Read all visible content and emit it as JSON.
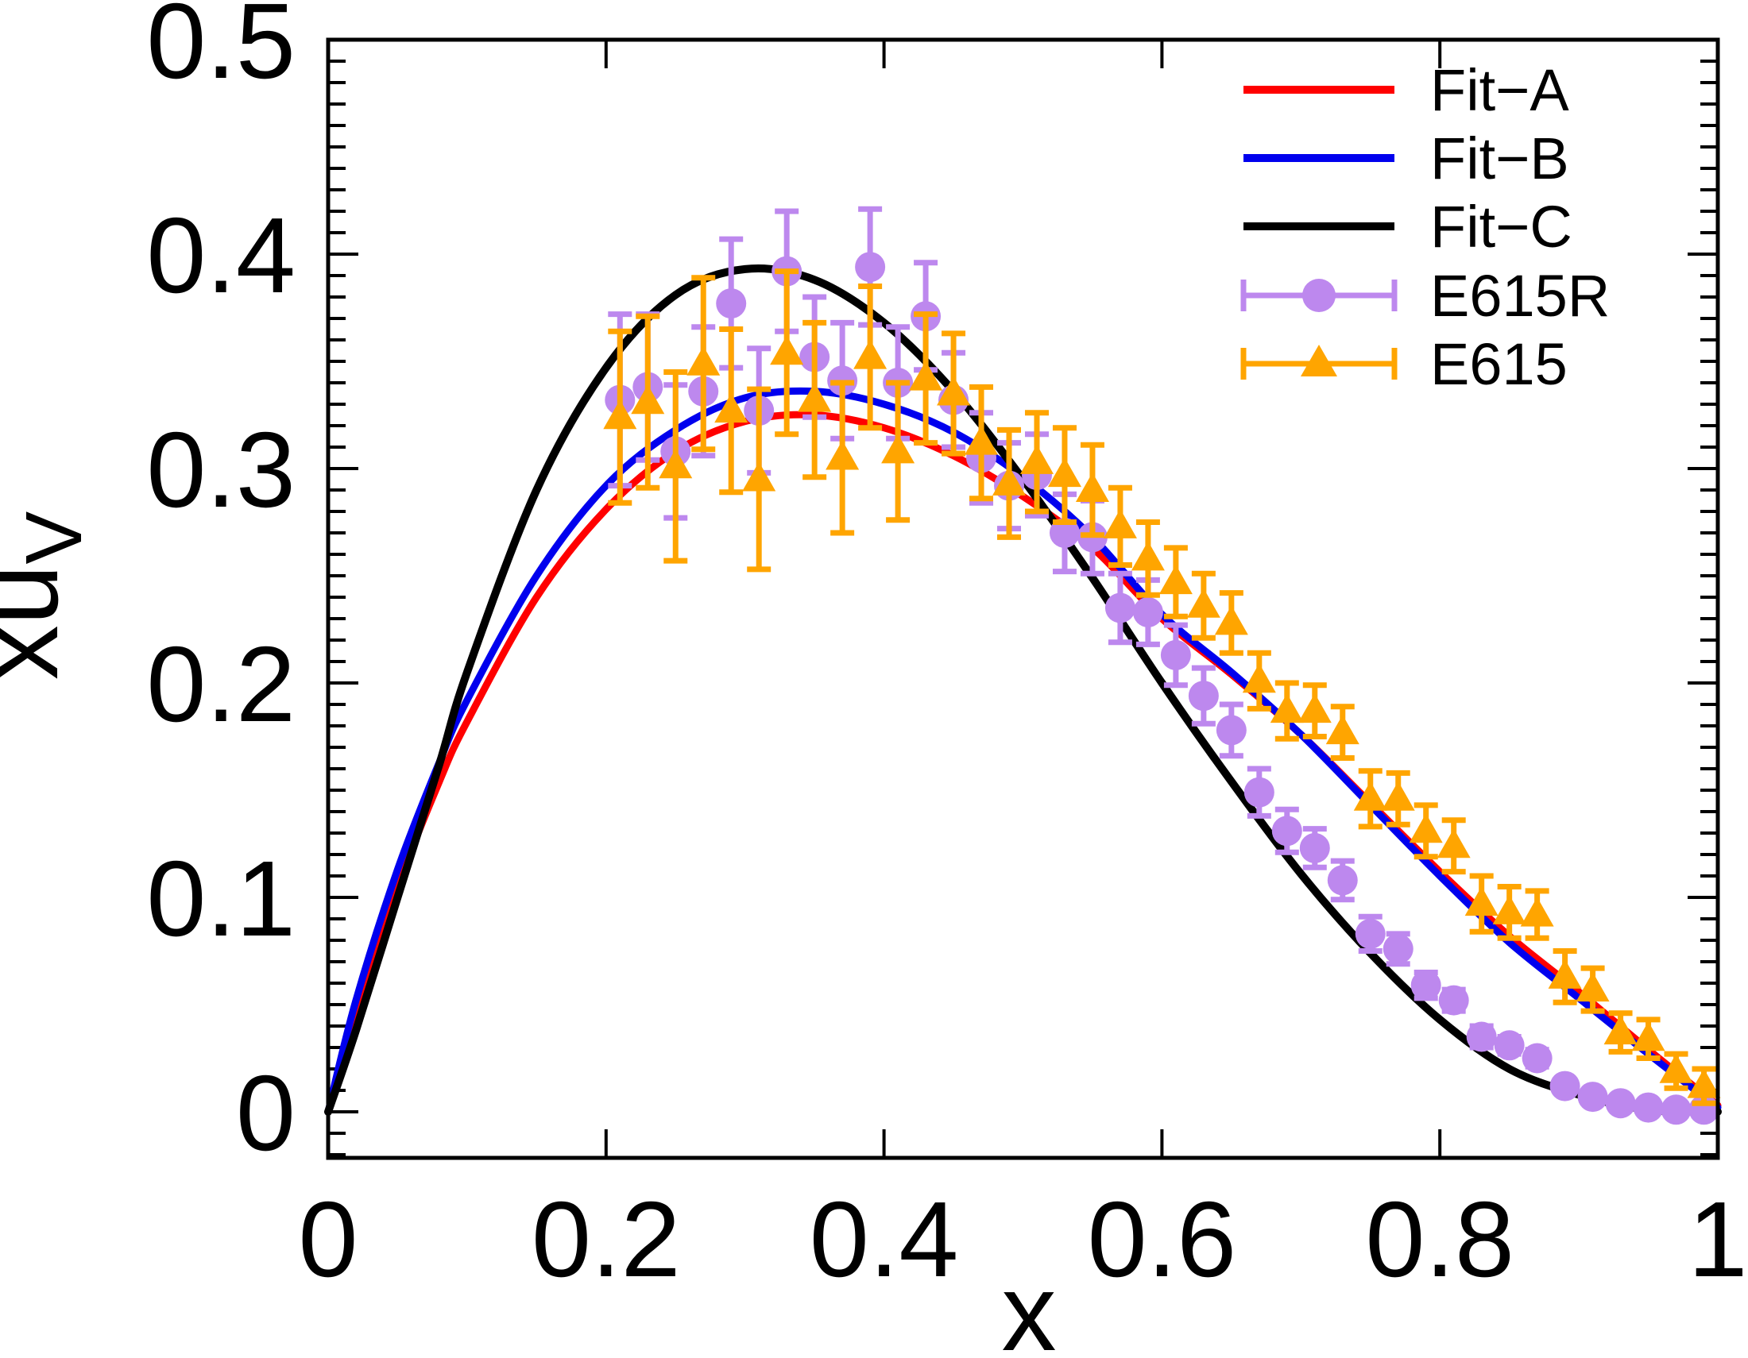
{
  "figure": {
    "background": "#ffffff"
  },
  "axes": {
    "xlabel": "x",
    "ylabel_main": "xu",
    "ylabel_sub": "V",
    "xlim": [
      0,
      1
    ],
    "ylim": [
      -0.02,
      0.5
    ],
    "xtick_values": [
      0,
      0.2,
      0.4,
      0.6,
      0.8,
      1
    ],
    "xtick_labels": [
      "0",
      "0.2",
      "0.4",
      "0.6",
      "0.8",
      "1"
    ],
    "ytick_values": [
      0,
      0.1,
      0.2,
      0.3,
      0.4,
      0.5
    ],
    "ytick_labels": [
      "0",
      "0.1",
      "0.2",
      "0.3",
      "0.4",
      "0.5"
    ],
    "y_minor_step": 0.01,
    "x_minor_step": null
  },
  "legend": {
    "position": "top-right",
    "items": [
      {
        "name": "fit-a",
        "label": "Fit−A",
        "type": "line",
        "color": "#ff0000"
      },
      {
        "name": "fit-b",
        "label": "Fit−B",
        "type": "line",
        "color": "#0000ee"
      },
      {
        "name": "fit-c",
        "label": "Fit−C",
        "type": "line",
        "color": "#000000"
      },
      {
        "name": "e615r",
        "label": "E615R",
        "type": "errorbar-circle",
        "color": "#bd88ee"
      },
      {
        "name": "e615",
        "label": "E615",
        "type": "errorbar-triangle",
        "color": "#ffa500"
      }
    ]
  },
  "chart_data": {
    "type": "line",
    "title": "",
    "xlabel": "x",
    "ylabel": "xu_V",
    "xlim": [
      0,
      1
    ],
    "ylim": [
      -0.02,
      0.5
    ],
    "grid": false,
    "legend_position": "top-right",
    "curves": [
      {
        "name": "Fit−A",
        "color": "#ff0000",
        "width": 9,
        "x": [
          0,
          0.02,
          0.05,
          0.08,
          0.1,
          0.15,
          0.2,
          0.25,
          0.3,
          0.35,
          0.4,
          0.45,
          0.5,
          0.55,
          0.6,
          0.65,
          0.7,
          0.75,
          0.8,
          0.85,
          0.9,
          0.95,
          1.0
        ],
        "y": [
          0,
          0.047,
          0.105,
          0.154,
          0.182,
          0.24,
          0.281,
          0.308,
          0.322,
          0.325,
          0.319,
          0.306,
          0.287,
          0.263,
          0.23,
          0.204,
          0.176,
          0.144,
          0.112,
          0.082,
          0.056,
          0.029,
          0.003
        ]
      },
      {
        "name": "Fit−B",
        "color": "#0000ee",
        "width": 9,
        "x": [
          0,
          0.02,
          0.05,
          0.08,
          0.1,
          0.15,
          0.2,
          0.25,
          0.3,
          0.35,
          0.4,
          0.45,
          0.5,
          0.55,
          0.6,
          0.65,
          0.7,
          0.75,
          0.8,
          0.85,
          0.9,
          0.95,
          1.0
        ],
        "y": [
          0,
          0.052,
          0.113,
          0.163,
          0.192,
          0.25,
          0.292,
          0.318,
          0.333,
          0.336,
          0.33,
          0.317,
          0.296,
          0.268,
          0.232,
          0.205,
          0.176,
          0.143,
          0.11,
          0.079,
          0.053,
          0.027,
          0.002
        ]
      },
      {
        "name": "Fit−C",
        "color": "#000000",
        "width": 10,
        "x": [
          0,
          0.02,
          0.05,
          0.08,
          0.1,
          0.15,
          0.2,
          0.25,
          0.3,
          0.35,
          0.4,
          0.45,
          0.5,
          0.55,
          0.6,
          0.65,
          0.7,
          0.75,
          0.8,
          0.85,
          0.9,
          0.95,
          1.0
        ],
        "y": [
          0,
          0.038,
          0.1,
          0.162,
          0.205,
          0.29,
          0.347,
          0.381,
          0.393,
          0.388,
          0.368,
          0.336,
          0.295,
          0.249,
          0.2,
          0.154,
          0.111,
          0.074,
          0.043,
          0.02,
          0.008,
          0.001,
          0
        ]
      }
    ],
    "scatter_series": [
      {
        "name": "E615R",
        "marker": "circle",
        "color": "#bd88ee",
        "x": [
          0.21,
          0.23,
          0.25,
          0.27,
          0.29,
          0.31,
          0.33,
          0.35,
          0.37,
          0.39,
          0.41,
          0.43,
          0.45,
          0.47,
          0.49,
          0.51,
          0.53,
          0.55,
          0.57,
          0.59,
          0.61,
          0.63,
          0.65,
          0.67,
          0.69,
          0.71,
          0.73,
          0.75,
          0.77,
          0.79,
          0.81,
          0.83,
          0.85,
          0.87,
          0.89,
          0.91,
          0.93,
          0.95,
          0.97,
          0.99
        ],
        "y": [
          0.332,
          0.338,
          0.308,
          0.336,
          0.377,
          0.327,
          0.392,
          0.352,
          0.341,
          0.394,
          0.34,
          0.371,
          0.332,
          0.305,
          0.292,
          0.297,
          0.27,
          0.268,
          0.235,
          0.233,
          0.213,
          0.194,
          0.178,
          0.149,
          0.131,
          0.123,
          0.108,
          0.083,
          0.076,
          0.059,
          0.052,
          0.035,
          0.031,
          0.025,
          0.012,
          0.007,
          0.004,
          0.002,
          0.001,
          0.001
        ],
        "yerr": [
          0.04,
          0.034,
          0.031,
          0.03,
          0.03,
          0.029,
          0.028,
          0.028,
          0.027,
          0.027,
          0.026,
          0.025,
          0.022,
          0.021,
          0.02,
          0.019,
          0.018,
          0.017,
          0.016,
          0.015,
          0.014,
          0.013,
          0.012,
          0.011,
          0.01,
          0.009,
          0.009,
          0.008,
          0.007,
          0.006,
          0.005,
          0.005,
          0.004,
          0.004,
          0.003,
          0.003,
          0.002,
          0.002,
          0.002,
          0.002
        ]
      },
      {
        "name": "E615",
        "marker": "triangle",
        "color": "#ffa500",
        "x": [
          0.21,
          0.23,
          0.25,
          0.27,
          0.29,
          0.31,
          0.33,
          0.35,
          0.37,
          0.39,
          0.41,
          0.43,
          0.45,
          0.47,
          0.49,
          0.51,
          0.53,
          0.55,
          0.57,
          0.59,
          0.61,
          0.63,
          0.65,
          0.67,
          0.69,
          0.71,
          0.73,
          0.75,
          0.77,
          0.79,
          0.81,
          0.83,
          0.85,
          0.87,
          0.89,
          0.91,
          0.93,
          0.95,
          0.97,
          0.99
        ],
        "y": [
          0.324,
          0.331,
          0.301,
          0.349,
          0.327,
          0.295,
          0.354,
          0.332,
          0.305,
          0.352,
          0.308,
          0.342,
          0.335,
          0.312,
          0.293,
          0.303,
          0.297,
          0.29,
          0.273,
          0.258,
          0.247,
          0.236,
          0.228,
          0.201,
          0.187,
          0.187,
          0.177,
          0.146,
          0.146,
          0.131,
          0.124,
          0.097,
          0.093,
          0.092,
          0.063,
          0.057,
          0.037,
          0.034,
          0.019,
          0.012
        ],
        "yerr": [
          0.04,
          0.04,
          0.044,
          0.04,
          0.038,
          0.042,
          0.038,
          0.036,
          0.035,
          0.033,
          0.032,
          0.03,
          0.028,
          0.026,
          0.025,
          0.023,
          0.022,
          0.021,
          0.018,
          0.017,
          0.016,
          0.015,
          0.014,
          0.013,
          0.013,
          0.012,
          0.012,
          0.013,
          0.012,
          0.012,
          0.012,
          0.013,
          0.012,
          0.011,
          0.012,
          0.01,
          0.009,
          0.009,
          0.008,
          0.008
        ]
      }
    ]
  }
}
